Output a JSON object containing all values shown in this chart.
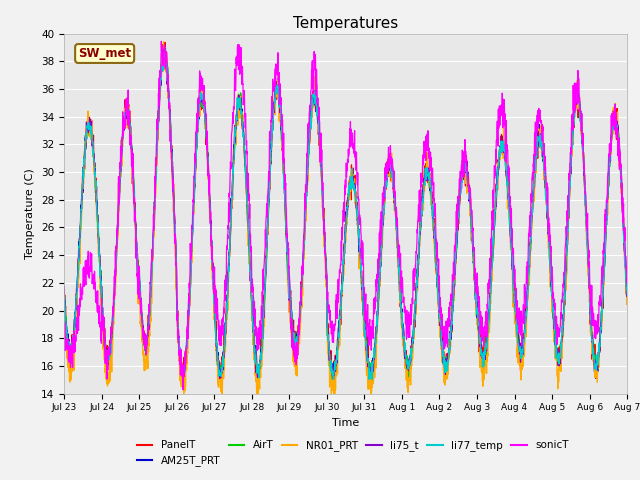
{
  "title": "Temperatures",
  "xlabel": "Time",
  "ylabel": "Temperature (C)",
  "ylim": [
    14,
    40
  ],
  "annotation_text": "SW_met",
  "bg_color": "#f2f2f2",
  "plot_bg_color": "#e8e8e8",
  "grid_color": "#ffffff",
  "legend_entries": [
    "PanelT",
    "AM25T_PRT",
    "AirT",
    "NR01_PRT",
    "li75_t",
    "li77_temp",
    "sonicT"
  ],
  "line_colors": [
    "#ff0000",
    "#0000cc",
    "#00cc00",
    "#ffaa00",
    "#8800cc",
    "#00cccc",
    "#ff00ff"
  ],
  "tick_labels": [
    "Jul 23",
    "Jul 24",
    "Jul 25",
    "Jul 26",
    "Jul 27",
    "Jul 28",
    "Jul 29",
    "Jul 30",
    "Jul 31",
    "Aug 1",
    "Aug 2",
    "Aug 3",
    "Aug 4",
    "Aug 5",
    "Aug 6",
    "Aug 7"
  ],
  "yticks": [
    14,
    16,
    18,
    20,
    22,
    24,
    26,
    28,
    30,
    32,
    34,
    36,
    38,
    40
  ],
  "num_days": 15
}
